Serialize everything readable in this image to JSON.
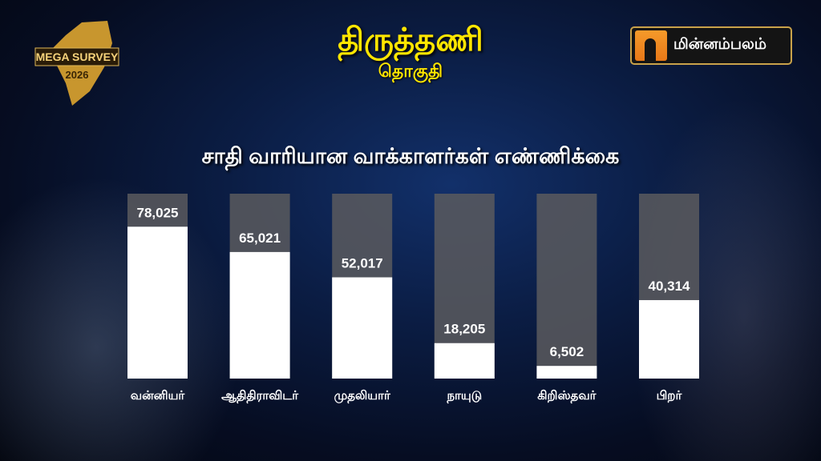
{
  "header": {
    "title": "திருத்தணி",
    "subtitle": "தொகுதி",
    "left_logo": "MEGA SURVEY 2026",
    "brand": "மின்னம்பலம்"
  },
  "colors": {
    "title": "#ffe600",
    "bar_fill": "#ffffff",
    "bar_track": "#5a5a5e"
  },
  "chart_data": {
    "type": "bar",
    "title": "சாதி வாரியான வாக்காளர்கள்  எண்ணிக்கை",
    "categories": [
      "வன்னியர்",
      "ஆதிதிராவிடர்",
      "முதலியார்",
      "நாயுடு",
      "கிறிஸ்தவர்",
      "பிறர்"
    ],
    "values": [
      78025,
      65021,
      52017,
      18205,
      6502,
      40314
    ],
    "value_labels": [
      "78,025",
      "65,021",
      "52,017",
      "18,205",
      "6,502",
      "40,314"
    ],
    "xlabel": "",
    "ylabel": "",
    "grid": false
  }
}
